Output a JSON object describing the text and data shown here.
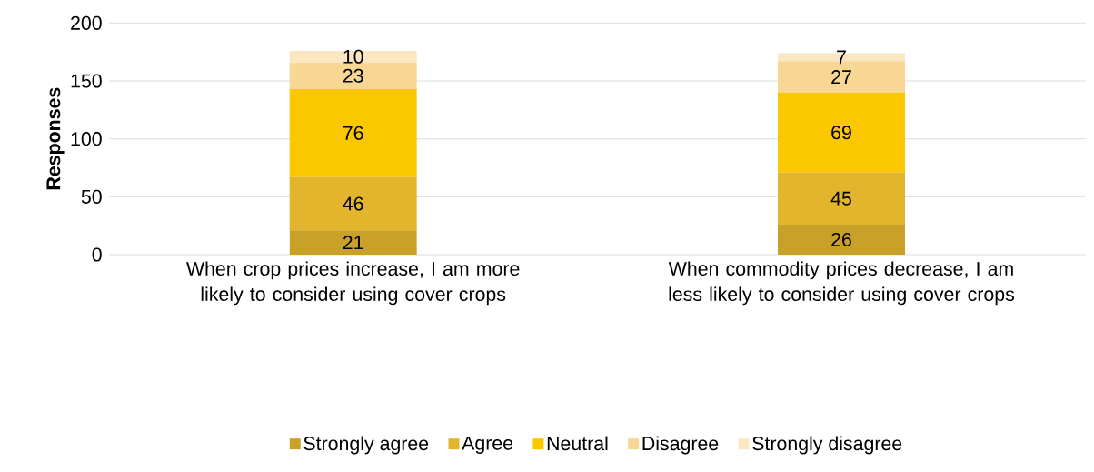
{
  "chart_data": {
    "type": "bar",
    "stacked": true,
    "ylabel": "Responses",
    "categories": [
      "When crop prices increase, I am more likely to consider using cover crops",
      "When commodity prices decrease, I am less likely to consider using cover crops"
    ],
    "series": [
      {
        "name": "Strongly agree",
        "color": "#c9a128",
        "values": [
          21,
          26
        ]
      },
      {
        "name": "Agree",
        "color": "#e2b52c",
        "values": [
          46,
          45
        ]
      },
      {
        "name": "Neutral",
        "color": "#fbc700",
        "values": [
          76,
          69
        ]
      },
      {
        "name": "Disagree",
        "color": "#f8d694",
        "values": [
          23,
          27
        ]
      },
      {
        "name": "Strongly disagree",
        "color": "#fbe6c2",
        "values": [
          10,
          7
        ]
      }
    ],
    "ylim": [
      0,
      200
    ],
    "yticks": [
      0,
      50,
      100,
      150,
      200
    ],
    "grid": "y",
    "legend": "bottom",
    "data_labels": true
  }
}
